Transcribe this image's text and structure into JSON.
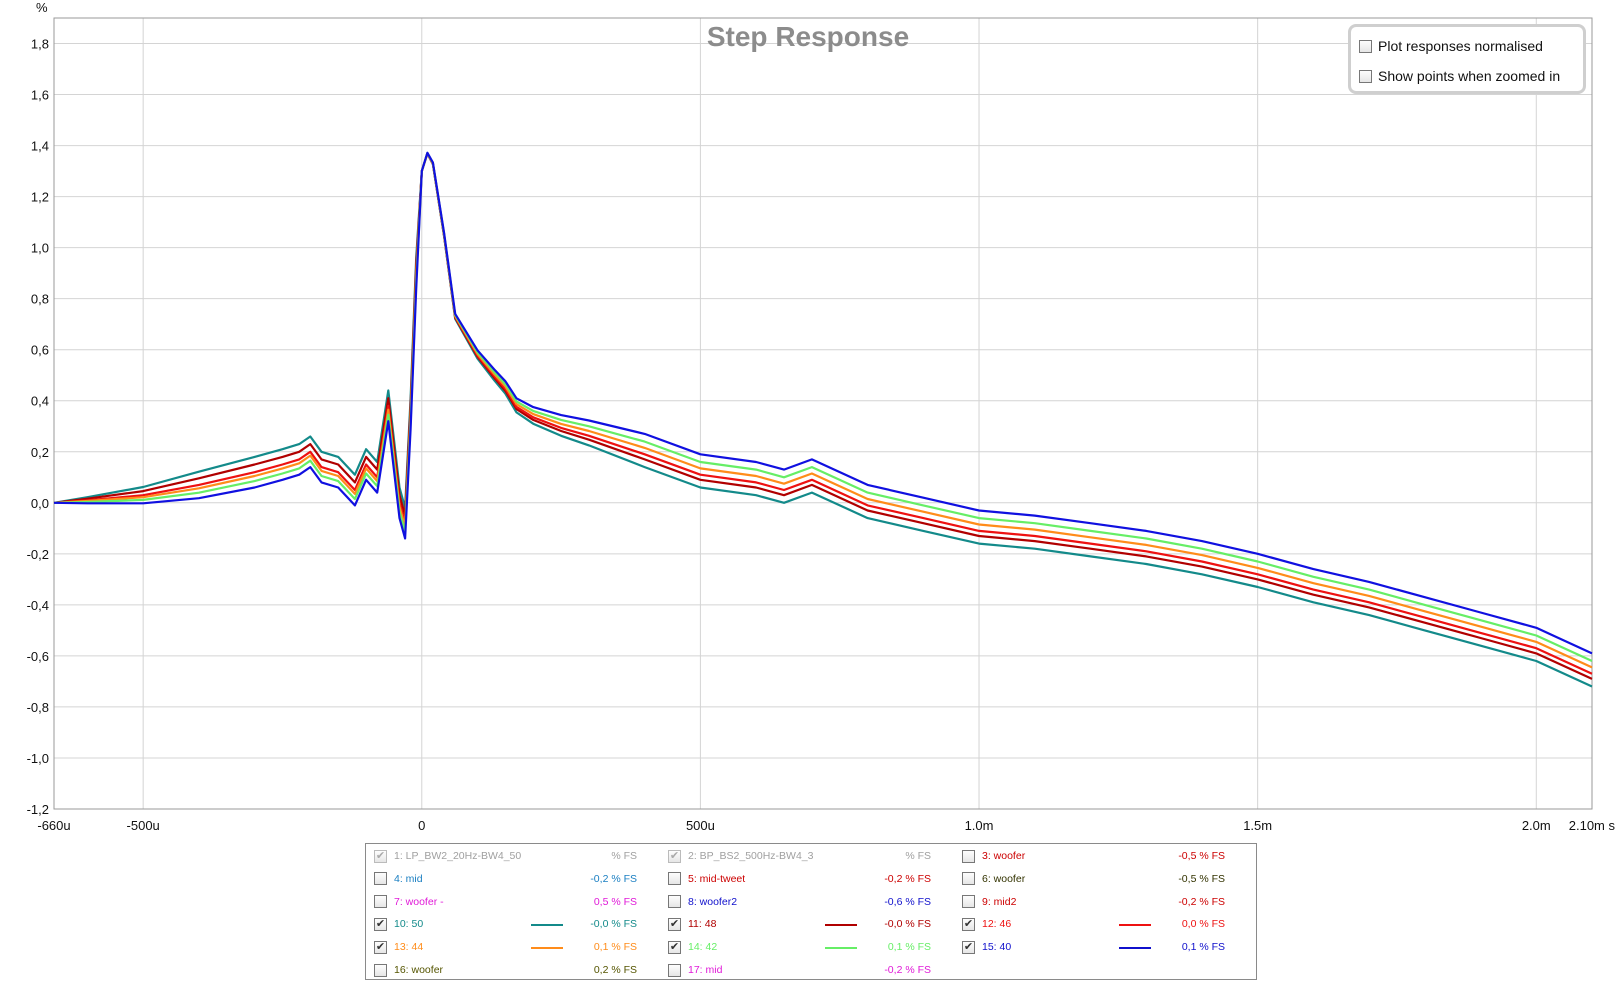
{
  "chart_data": {
    "type": "line",
    "title": "Step Response",
    "ylabel": "%",
    "xunit": "s",
    "xlim": [
      -0.00066,
      0.0021
    ],
    "ylim": [
      -1.2,
      1.9
    ],
    "grid": true,
    "x_ticks": [
      {
        "value": -0.00066,
        "label": "-660u"
      },
      {
        "value": -0.0005,
        "label": "-500u"
      },
      {
        "value": 0,
        "label": "0"
      },
      {
        "value": 0.0005,
        "label": "500u"
      },
      {
        "value": 0.001,
        "label": "1,0m"
      },
      {
        "value": 0.0015,
        "label": "1,5m"
      },
      {
        "value": 0.002,
        "label": "2,0m"
      },
      {
        "value": 0.0021,
        "label": "2,10m s"
      }
    ],
    "y_ticks": [
      {
        "value": 1.8,
        "label": "1,8"
      },
      {
        "value": 1.6,
        "label": "1,6"
      },
      {
        "value": 1.4,
        "label": "1,4"
      },
      {
        "value": 1.2,
        "label": "1,2"
      },
      {
        "value": 1.0,
        "label": "1,0"
      },
      {
        "value": 0.8,
        "label": "0,8"
      },
      {
        "value": 0.6,
        "label": "0,6"
      },
      {
        "value": 0.4,
        "label": "0,4"
      },
      {
        "value": 0.2,
        "label": "0,2"
      },
      {
        "value": 0.0,
        "label": "0,0"
      },
      {
        "value": -0.2,
        "label": "-0,2"
      },
      {
        "value": -0.4,
        "label": "-0,4"
      },
      {
        "value": -0.6,
        "label": "-0,6"
      },
      {
        "value": -0.8,
        "label": "-0,8"
      },
      {
        "value": -1.0,
        "label": "-1,0"
      },
      {
        "value": -1.2,
        "label": "-1,2"
      }
    ],
    "base_curve": {
      "x": [
        -0.00066,
        -0.0006,
        -0.0005,
        -0.0004,
        -0.0003,
        -0.00025,
        -0.00022,
        -0.0002,
        -0.00018,
        -0.00015,
        -0.00012,
        -0.0001,
        -8e-05,
        -6e-05,
        -4e-05,
        -3e-05,
        -2e-05,
        -1e-05,
        0,
        1e-05,
        2e-05,
        4e-05,
        6e-05,
        0.0001,
        0.00013,
        0.00015,
        0.00017,
        0.0002,
        0.00025,
        0.0003,
        0.0004,
        0.0005,
        0.0006,
        0.00065,
        0.0007,
        0.0008,
        0.0009,
        0.001,
        0.0011,
        0.0012,
        0.0013,
        0.0014,
        0.0015,
        0.0016,
        0.0017,
        0.0018,
        0.0019,
        0.002,
        0.0021
      ],
      "y": [
        0.0,
        0.01,
        0.03,
        0.07,
        0.12,
        0.15,
        0.17,
        0.2,
        0.14,
        0.12,
        0.05,
        0.15,
        0.1,
        0.38,
        0.0,
        -0.08,
        0.35,
        0.9,
        1.3,
        1.37,
        1.33,
        1.05,
        0.73,
        0.58,
        0.5,
        0.45,
        0.38,
        0.34,
        0.3,
        0.27,
        0.2,
        0.12,
        0.09,
        0.06,
        0.1,
        0.0,
        -0.05,
        -0.1,
        -0.12,
        -0.15,
        -0.18,
        -0.22,
        -0.27,
        -0.33,
        -0.38,
        -0.44,
        -0.5,
        -0.56,
        -0.66
      ]
    },
    "series": [
      {
        "name": "10: 50",
        "color": "#138a8a",
        "pre_offset": 0.06,
        "post_offset": -0.06
      },
      {
        "name": "11: 48",
        "color": "#b00000",
        "pre_offset": 0.03,
        "post_offset": -0.03
      },
      {
        "name": "12: 46",
        "color": "#ee1111",
        "pre_offset": 0.0,
        "post_offset": -0.01
      },
      {
        "name": "13: 44",
        "color": "#ff8c1a",
        "pre_offset": -0.015,
        "post_offset": 0.015
      },
      {
        "name": "14: 42",
        "color": "#66ee66",
        "pre_offset": -0.035,
        "post_offset": 0.04
      },
      {
        "name": "15: 40",
        "color": "#1010e0",
        "pre_offset": -0.06,
        "post_offset": 0.07
      }
    ]
  },
  "options": {
    "normalised_label": "Plot responses normalised",
    "show_points_label": "Show points when zoomed in",
    "normalised_checked": false,
    "show_points_checked": false
  },
  "legend": {
    "rows": [
      [
        {
          "label": "1: LP_BW2_20Hz-BW4_50",
          "value": "% FS",
          "color": "#a0a0a0",
          "checked": true,
          "disabled": true
        },
        {
          "label": "2: BP_BS2_500Hz-BW4_3",
          "value": "% FS",
          "color": "#a0a0a0",
          "checked": true,
          "disabled": true
        },
        {
          "label": "3: woofer",
          "value": "-0,5 % FS",
          "color": "#cc0000",
          "checked": false
        }
      ],
      [
        {
          "label": "4: mid",
          "value": "-0,2 % FS",
          "color": "#1a7fc2",
          "checked": false
        },
        {
          "label": "5: mid-tweet",
          "value": "-0,2 % FS",
          "color": "#cc0000",
          "checked": false
        },
        {
          "label": "6: woofer",
          "value": "-0,5 % FS",
          "color": "#333300",
          "checked": false
        }
      ],
      [
        {
          "label": "7: woofer -",
          "value": "0,5 % FS",
          "color": "#e01ad8",
          "checked": false
        },
        {
          "label": "8: woofer2",
          "value": "-0,6 % FS",
          "color": "#1010cc",
          "checked": false
        },
        {
          "label": "9: mid2",
          "value": "-0,2 % FS",
          "color": "#cc0000",
          "checked": false
        }
      ],
      [
        {
          "label": "10: 50",
          "value": "-0,0 % FS",
          "color": "#138a8a",
          "checked": true,
          "swatch": true
        },
        {
          "label": "11: 48",
          "value": "-0,0 % FS",
          "color": "#b00000",
          "checked": true,
          "swatch": true
        },
        {
          "label": "12: 46",
          "value": "0,0 % FS",
          "color": "#ee1111",
          "checked": true,
          "swatch": true
        }
      ],
      [
        {
          "label": "13: 44",
          "value": "0,1 % FS",
          "color": "#ff8c1a",
          "checked": true,
          "swatch": true
        },
        {
          "label": "14: 42",
          "value": "0,1 % FS",
          "color": "#66ee66",
          "checked": true,
          "swatch": true
        },
        {
          "label": "15: 40",
          "value": "0,1 % FS",
          "color": "#1010cc",
          "checked": true,
          "swatch": true
        }
      ],
      [
        {
          "label": "16: woofer",
          "value": "0,2 % FS",
          "color": "#555500",
          "checked": false
        },
        {
          "label": "17: mid",
          "value": "-0,2 % FS",
          "color": "#e01ad8",
          "checked": false
        }
      ]
    ]
  }
}
